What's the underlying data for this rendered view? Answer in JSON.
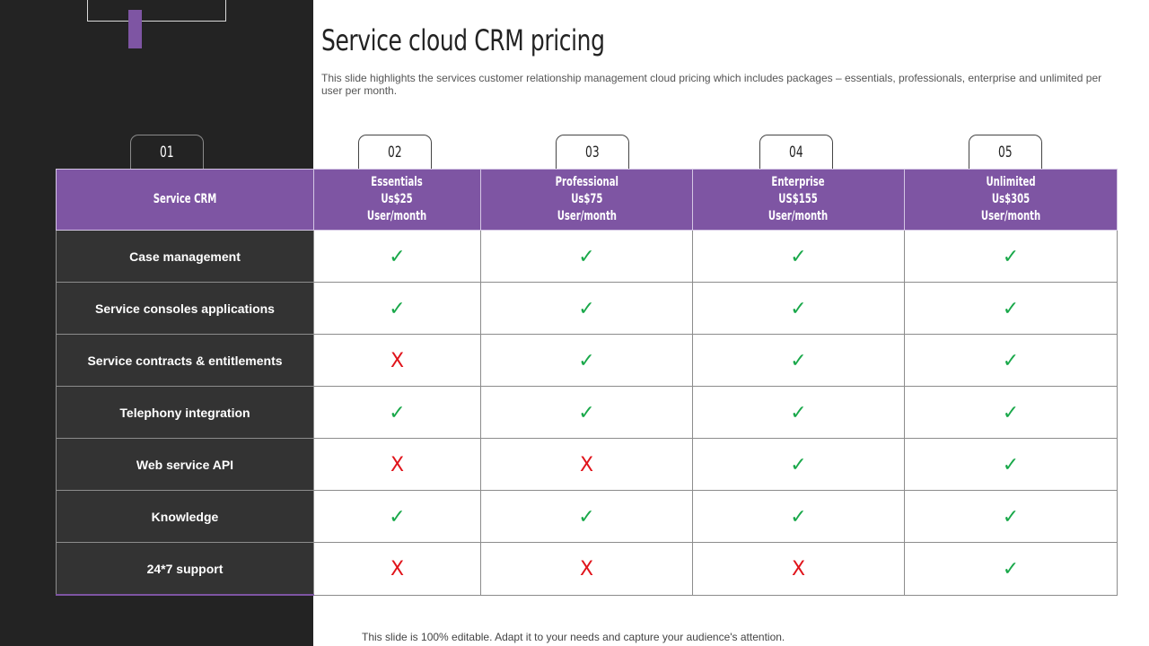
{
  "title": "Service cloud CRM pricing",
  "subtitle": "This slide highlights the services customer relationship management cloud pricing which includes packages – essentials, professionals, enterprise and unlimited per user per month.",
  "tabs": [
    "01",
    "02",
    "03",
    "04",
    "05"
  ],
  "table": {
    "header_label": "Service CRM",
    "plans": [
      {
        "name": "Essentials",
        "price": "Us$25",
        "period": "User/month"
      },
      {
        "name": "Professional",
        "price": "Us$75",
        "period": "User/month"
      },
      {
        "name": "Enterprise",
        "price": "US$155",
        "period": "User/month"
      },
      {
        "name": "Unlimited",
        "price": "Us$305",
        "period": "User/month"
      }
    ],
    "rows": [
      {
        "feature": "Case management",
        "values": [
          true,
          true,
          true,
          true
        ]
      },
      {
        "feature": "Service consoles  applications",
        "values": [
          true,
          true,
          true,
          true
        ]
      },
      {
        "feature": "Service contracts  & entitlements",
        "values": [
          false,
          true,
          true,
          true
        ]
      },
      {
        "feature": "Telephony integration",
        "values": [
          true,
          true,
          true,
          true
        ]
      },
      {
        "feature": "Web service API",
        "values": [
          false,
          false,
          true,
          true
        ]
      },
      {
        "feature": "Knowledge",
        "values": [
          true,
          true,
          true,
          true
        ]
      },
      {
        "feature": "24*7  support",
        "values": [
          false,
          false,
          false,
          true
        ]
      }
    ],
    "symbols": {
      "yes": "✓",
      "no": "X"
    }
  },
  "footer": "This slide is 100% editable. Adapt it to your needs and capture your audience's attention.",
  "colors": {
    "accent": "#7e55a3",
    "dark": "#232323",
    "check": "#19a84a",
    "cross": "#e0141b"
  }
}
